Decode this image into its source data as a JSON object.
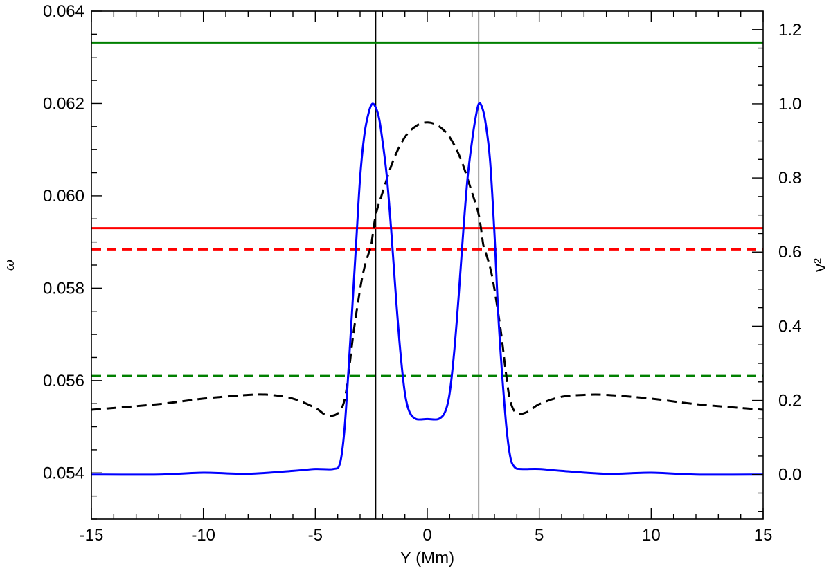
{
  "chart_data": {
    "type": "line",
    "title": "",
    "xlabel": "Y (Mm)",
    "ylabel_left": "ω",
    "ylabel_right": "v²",
    "xlim": [
      -15,
      15
    ],
    "ylim_left": [
      0.053,
      0.064
    ],
    "ylim_right": [
      -0.12,
      1.25
    ],
    "x_ticks": [
      -15,
      -10,
      -5,
      0,
      5,
      10,
      15
    ],
    "y_left_ticks": [
      0.054,
      0.056,
      0.058,
      0.06,
      0.062,
      0.064
    ],
    "y_left_tick_labels": [
      "0.054",
      "0.056",
      "0.058",
      "0.060",
      "0.062",
      "0.064"
    ],
    "y_right_ticks": [
      0.0,
      0.2,
      0.4,
      0.6,
      0.8,
      1.0,
      1.2
    ],
    "y_right_tick_labels": [
      "0.0",
      "0.2",
      "0.4",
      "0.6",
      "0.8",
      "1.0",
      "1.2"
    ],
    "grid": false,
    "vertical_lines": [
      -2.3,
      2.3
    ],
    "hlines": [
      {
        "y": 0.06332,
        "color": "#008000",
        "dash": "solid"
      },
      {
        "y": 0.0593,
        "color": "#ff0000",
        "dash": "solid"
      },
      {
        "y": 0.05884,
        "color": "#ff0000",
        "dash": "dashed"
      },
      {
        "y": 0.0561,
        "color": "#008000",
        "dash": "dashed"
      }
    ],
    "series": [
      {
        "axis": "right",
        "color": "#0000ff",
        "dash": "solid",
        "x": [
          -15,
          -12,
          -10,
          -8,
          -6,
          -5,
          -4.2,
          -3.9,
          -3.7,
          -3.5,
          -3.2,
          -3.0,
          -2.8,
          -2.6,
          -2.45,
          -2.3,
          -2.15,
          -2.0,
          -1.8,
          -1.6,
          -1.4,
          -1.2,
          -1.0,
          -0.8,
          -0.5,
          0,
          0.5,
          0.8,
          1.0,
          1.2,
          1.4,
          1.6,
          1.8,
          2.0,
          2.15,
          2.3,
          2.45,
          2.6,
          2.8,
          3.0,
          3.2,
          3.5,
          3.7,
          3.9,
          4.2,
          5,
          6,
          8,
          10,
          12,
          15
        ],
        "y": [
          0.0,
          0.0,
          0.005,
          0.002,
          0.01,
          0.015,
          0.015,
          0.03,
          0.12,
          0.3,
          0.6,
          0.8,
          0.92,
          0.98,
          1.0,
          0.99,
          0.96,
          0.9,
          0.8,
          0.65,
          0.48,
          0.33,
          0.22,
          0.17,
          0.15,
          0.15,
          0.15,
          0.17,
          0.22,
          0.33,
          0.48,
          0.65,
          0.8,
          0.9,
          0.96,
          1.0,
          0.99,
          0.95,
          0.85,
          0.65,
          0.4,
          0.15,
          0.05,
          0.02,
          0.015,
          0.015,
          0.01,
          0.002,
          0.005,
          0.0,
          0.0
        ]
      },
      {
        "axis": "right",
        "color": "#000000",
        "dash": "dashed",
        "x": [
          -15,
          -12,
          -10,
          -8,
          -7,
          -6,
          -5,
          -4.5,
          -4,
          -3.7,
          -3.5,
          -3.3,
          -3.0,
          -2.8,
          -2.6,
          -2.5,
          -2.3,
          -2.0,
          -1.5,
          -1.0,
          -0.5,
          0,
          0.5,
          1.0,
          1.5,
          2.0,
          2.3,
          2.5,
          2.6,
          2.8,
          3.0,
          3.3,
          3.5,
          3.7,
          4,
          4.5,
          5,
          6,
          7,
          8,
          10,
          12,
          15
        ],
        "y": [
          0.175,
          0.19,
          0.205,
          0.215,
          0.215,
          0.205,
          0.18,
          0.16,
          0.165,
          0.2,
          0.28,
          0.38,
          0.5,
          0.56,
          0.6,
          0.62,
          0.7,
          0.76,
          0.85,
          0.91,
          0.94,
          0.95,
          0.94,
          0.91,
          0.85,
          0.76,
          0.7,
          0.62,
          0.6,
          0.56,
          0.5,
          0.38,
          0.28,
          0.2,
          0.165,
          0.17,
          0.19,
          0.21,
          0.215,
          0.215,
          0.205,
          0.19,
          0.175
        ]
      }
    ]
  }
}
